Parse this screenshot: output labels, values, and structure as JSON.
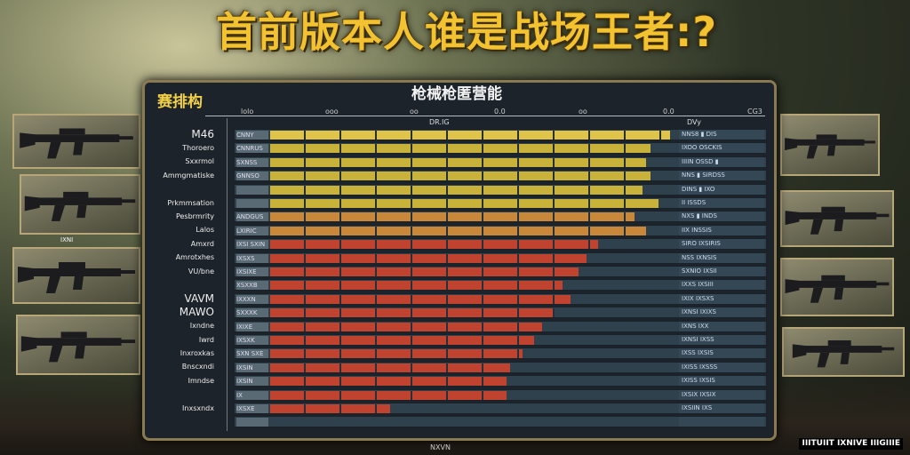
{
  "title": "首前版本人谁是战场王者:?",
  "panel": {
    "title": "枪械枪匿营能",
    "corner_label": "赛排构",
    "axis_ticks": [
      "lolo",
      "ooo",
      "oo",
      "0.0",
      "oo",
      "0.0",
      "CG3"
    ],
    "col_head_main": "DR.IG",
    "col_head_side": "DVy"
  },
  "colors": {
    "yellow": "#c9b23a",
    "header_yellow": "#e0c44a",
    "orange": "#c9873a",
    "red": "#c0432f",
    "gray": "#4a5660"
  },
  "rows": [
    {
      "label": "M46",
      "tag": "CNNY",
      "fill": 1.0,
      "color": "header_yellow",
      "cells": "NNS8 ▮ DIS"
    },
    {
      "label": "Thoroero",
      "tag": "CNNRUS",
      "fill": 0.95,
      "color": "yellow",
      "cells": "IXOO OSCKIS"
    },
    {
      "label": "Sxxrmol",
      "tag": "SXNSS",
      "fill": 0.94,
      "color": "yellow",
      "cells": "IIIIN OSSD ▮"
    },
    {
      "label": "Ammgmatiske",
      "tag": "GNNSO",
      "fill": 0.95,
      "color": "yellow",
      "cells": "NNS ▮ SIRDSS"
    },
    {
      "label": "",
      "tag": "",
      "fill": 0.93,
      "color": "yellow",
      "cells": "DINS ▮ IXO"
    },
    {
      "label": "Prkmmsation",
      "tag": "",
      "fill": 0.97,
      "color": "yellow",
      "cells": "II ISSDS"
    },
    {
      "label": "Pesbrmrity",
      "tag": "ANDGUS",
      "fill": 0.91,
      "color": "orange",
      "cells": "NXS ▮ INDS"
    },
    {
      "label": "Lalos",
      "tag": "LXIRIC",
      "fill": 0.94,
      "color": "orange",
      "cells": "IIX INSSIS"
    },
    {
      "label": "Amxrd",
      "tag": "IXSI SXIN",
      "fill": 0.82,
      "color": "red",
      "cells": "SIRO IXSIRIS"
    },
    {
      "label": "Amrotxhes",
      "tag": "IXSXS",
      "fill": 0.79,
      "color": "red",
      "cells": "NSS IXNSIS"
    },
    {
      "label": "VU/bne",
      "tag": "IXSIXE",
      "fill": 0.77,
      "color": "red",
      "cells": "SXNIO IXSII"
    },
    {
      "label": "",
      "tag": "XSXXB",
      "fill": 0.73,
      "color": "red",
      "cells": "IXXS IXSIII"
    },
    {
      "label": "VAVM",
      "tag": "IXXXN",
      "fill": 0.75,
      "color": "red",
      "cells": "IXIX IXSXS"
    },
    {
      "label": "MAWO",
      "tag": "SXXXK",
      "fill": 0.71,
      "color": "red",
      "cells": "IXNSI IXIXS"
    },
    {
      "label": "Ixndne",
      "tag": "IXIXE",
      "fill": 0.68,
      "color": "red",
      "cells": "IXNS IXX"
    },
    {
      "label": "Iwrd",
      "tag": "IXSXK",
      "fill": 0.66,
      "color": "red",
      "cells": "IXNSI IXSS"
    },
    {
      "label": "Inxroxkas",
      "tag": "SXN SXE",
      "fill": 0.63,
      "color": "red",
      "cells": "IXSS IXSIS"
    },
    {
      "label": "Bnscxndi",
      "tag": "IXSIN",
      "fill": 0.6,
      "color": "red",
      "cells": "IXISS IXSSS"
    },
    {
      "label": "Imndse",
      "tag": "IXSIN",
      "fill": 0.59,
      "color": "red",
      "cells": "IXISS IXSIS"
    },
    {
      "label": "",
      "tag": "IX",
      "fill": 0.59,
      "color": "red",
      "cells": "IXSIX IXSIX"
    },
    {
      "label": "Inxsxndx",
      "tag": "IXSXE",
      "fill": 0.3,
      "color": "red",
      "cells": "IXSIIN IXS"
    },
    {
      "label": "",
      "tag": "",
      "fill": 0.0,
      "color": "gray",
      "cells": ""
    }
  ],
  "footer": "NXVN",
  "watermark": "IIITUIIT IXNIVE IIIGIIIE",
  "guns_left": [
    "assault-rifle",
    "carbine",
    "rifle",
    "scoped-rifle"
  ],
  "guns_right": [
    "assault-rifle",
    "rifle",
    "carbine",
    "sniper-rifle"
  ],
  "left_small_label": "IXNI"
}
